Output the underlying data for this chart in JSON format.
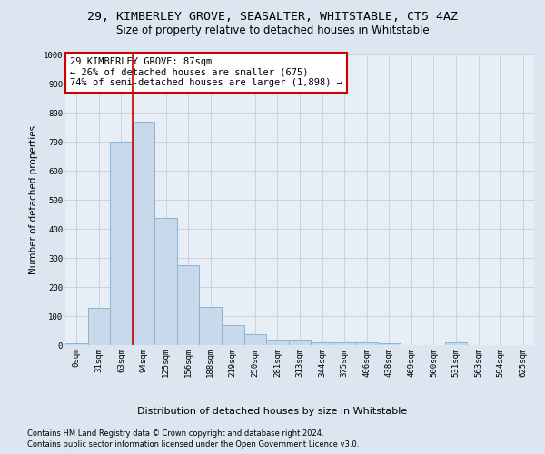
{
  "title1": "29, KIMBERLEY GROVE, SEASALTER, WHITSTABLE, CT5 4AZ",
  "title2": "Size of property relative to detached houses in Whitstable",
  "xlabel": "Distribution of detached houses by size in Whitstable",
  "ylabel": "Number of detached properties",
  "bar_color": "#c9d9ec",
  "bar_edge_color": "#8ab4d4",
  "grid_color": "#c8d4e0",
  "background_color": "#dce6f0",
  "plot_bg_color": "#e8eef5",
  "categories": [
    "0sqm",
    "31sqm",
    "63sqm",
    "94sqm",
    "125sqm",
    "156sqm",
    "188sqm",
    "219sqm",
    "250sqm",
    "281sqm",
    "313sqm",
    "344sqm",
    "375sqm",
    "406sqm",
    "438sqm",
    "469sqm",
    "500sqm",
    "531sqm",
    "563sqm",
    "594sqm",
    "625sqm"
  ],
  "values": [
    5,
    128,
    700,
    770,
    438,
    275,
    130,
    70,
    38,
    20,
    20,
    10,
    10,
    10,
    5,
    0,
    0,
    10,
    0,
    0,
    0
  ],
  "vline_index": 2.5,
  "vline_color": "#cc0000",
  "annotation_text": "29 KIMBERLEY GROVE: 87sqm\n← 26% of detached houses are smaller (675)\n74% of semi-detached houses are larger (1,898) →",
  "annotation_box_color": "white",
  "annotation_box_edge": "#cc0000",
  "footer1": "Contains HM Land Registry data © Crown copyright and database right 2024.",
  "footer2": "Contains public sector information licensed under the Open Government Licence v3.0.",
  "ylim": [
    0,
    1000
  ],
  "yticks": [
    0,
    100,
    200,
    300,
    400,
    500,
    600,
    700,
    800,
    900,
    1000
  ],
  "title1_fontsize": 9.5,
  "title2_fontsize": 8.5,
  "xlabel_fontsize": 8,
  "ylabel_fontsize": 7.5,
  "tick_fontsize": 6.5,
  "footer_fontsize": 6,
  "annotation_fontsize": 7.5
}
